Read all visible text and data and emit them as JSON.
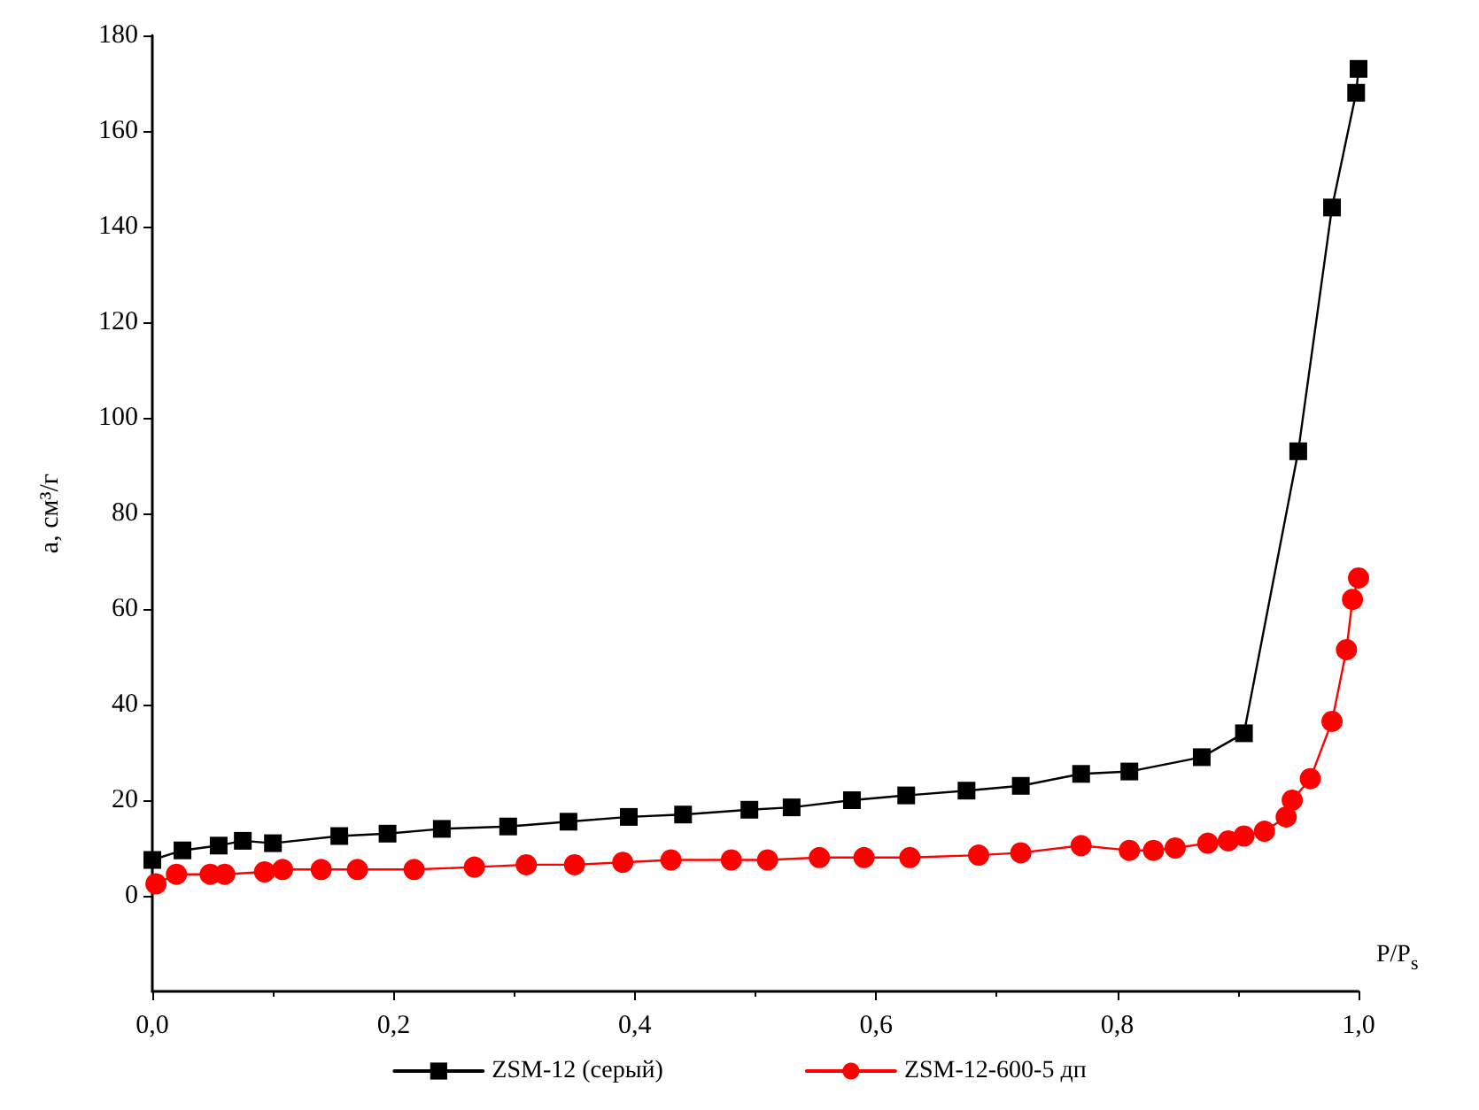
{
  "chart_data": {
    "type": "line",
    "xlabel": "P/P$_{s}$",
    "ylabel": "a, см³/г",
    "xlim": [
      0,
      1
    ],
    "ylim": [
      -20,
      180
    ],
    "xticks": [
      {
        "value": 0,
        "label": "0,0"
      },
      {
        "value": 0.2,
        "label": "0,2"
      },
      {
        "value": 0.4,
        "label": "0,4"
      },
      {
        "value": 0.6,
        "label": "0,6"
      },
      {
        "value": 0.8,
        "label": "0,8"
      },
      {
        "value": 1,
        "label": "1,0"
      }
    ],
    "yticks": [
      0,
      20,
      40,
      60,
      80,
      100,
      120,
      140,
      160,
      180
    ],
    "grid": false,
    "legend": "bottom",
    "series": [
      {
        "name": "ZSM-12 (серый)",
        "color": "#000000",
        "marker": "square",
        "x": [
          0.0,
          0.025,
          0.055,
          0.075,
          0.1,
          0.155,
          0.195,
          0.24,
          0.295,
          0.345,
          0.395,
          0.44,
          0.495,
          0.53,
          0.58,
          0.625,
          0.675,
          0.72,
          0.77,
          0.81,
          0.87,
          0.905,
          0.95,
          0.978,
          0.998,
          1.0
        ],
        "values": [
          7.5,
          9.5,
          10.5,
          11.5,
          11,
          12.5,
          13,
          14,
          14.5,
          15.5,
          16.5,
          17,
          18,
          18.5,
          20,
          21,
          22,
          23,
          25.5,
          26,
          29,
          34,
          93,
          144,
          168,
          173
        ]
      },
      {
        "name": "ZSM-12-600-5 дп",
        "color": "#ff0000",
        "marker": "circle",
        "x": [
          0.003,
          0.02,
          0.048,
          0.06,
          0.093,
          0.108,
          0.14,
          0.17,
          0.217,
          0.267,
          0.31,
          0.35,
          0.39,
          0.43,
          0.48,
          0.51,
          0.553,
          0.59,
          0.628,
          0.685,
          0.72,
          0.77,
          0.81,
          0.83,
          0.848,
          0.875,
          0.892,
          0.905,
          0.922,
          0.94,
          0.945,
          0.96,
          0.978,
          0.99,
          0.995,
          1.0
        ],
        "values": [
          2.5,
          4.5,
          4.5,
          4.5,
          5,
          5.5,
          5.5,
          5.5,
          5.5,
          6,
          6.5,
          6.5,
          7,
          7.5,
          7.5,
          7.5,
          8,
          8,
          8,
          8.5,
          9,
          10.5,
          9.5,
          9.5,
          10,
          11,
          11.5,
          12.5,
          13.5,
          16.5,
          20,
          24.5,
          36.5,
          51.5,
          62,
          66.5
        ]
      }
    ]
  }
}
